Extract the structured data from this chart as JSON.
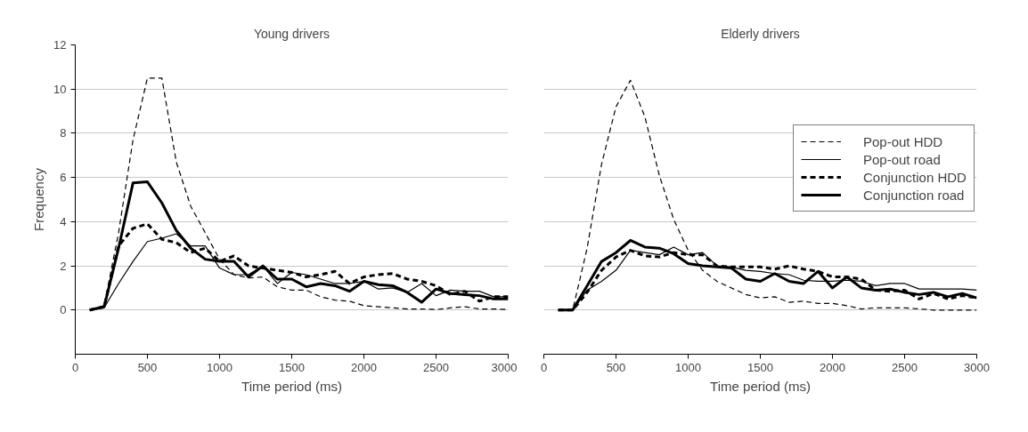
{
  "chart_data": [
    {
      "type": "line",
      "title": "Young drivers",
      "xlabel": "Time period (ms)",
      "ylabel": "Frequency",
      "xlim": [
        0,
        3000
      ],
      "xticks": [
        0,
        500,
        1000,
        1500,
        2000,
        2500,
        3000
      ],
      "ylim": [
        -2,
        12
      ],
      "yticks": [
        0,
        2,
        4,
        6,
        8,
        10,
        12
      ],
      "grid": "y",
      "legend": false,
      "x": [
        100,
        200,
        300,
        400,
        500,
        600,
        700,
        800,
        900,
        1000,
        1100,
        1200,
        1300,
        1400,
        1500,
        1600,
        1700,
        1800,
        1900,
        2000,
        2100,
        2200,
        2300,
        2400,
        2500,
        2600,
        2700,
        2800,
        2900,
        3000
      ],
      "series": [
        {
          "color": "#000000",
          "line_style": "dashed",
          "values": [
            0,
            0.2,
            3.5,
            7.7,
            10.5,
            10.5,
            6.7,
            4.7,
            3.5,
            2.3,
            1.6,
            1.45,
            1.5,
            1.05,
            0.9,
            0.9,
            0.6,
            0.45,
            0.4,
            0.2,
            0.15,
            0.1,
            0.05,
            0.05,
            0.02,
            0.1,
            0.15,
            0.05,
            0.05,
            0.02
          ]
        },
        {
          "color": "#000000",
          "line_style": "solid",
          "values": [
            0,
            0.1,
            1.2,
            2.2,
            3.1,
            3.25,
            3.45,
            2.9,
            2.9,
            1.9,
            1.6,
            1.6,
            2.0,
            1.2,
            1.7,
            1.6,
            1.4,
            1.2,
            1.2,
            1.3,
            0.95,
            1.0,
            0.8,
            1.2,
            0.65,
            0.9,
            0.85,
            0.85,
            0.6,
            0.6
          ]
        },
        {
          "color": "#000000",
          "line_style": "dashed",
          "values": [
            0,
            0.15,
            2.9,
            3.7,
            3.9,
            3.2,
            3.05,
            2.6,
            2.8,
            2.2,
            2.45,
            2.0,
            1.9,
            1.8,
            1.7,
            1.5,
            1.6,
            1.75,
            1.2,
            1.5,
            1.6,
            1.65,
            1.4,
            1.3,
            1.1,
            0.7,
            0.85,
            0.4,
            0.6,
            0.6
          ]
        },
        {
          "color": "#000000",
          "line_style": "solid",
          "values": [
            0,
            0.15,
            2.8,
            5.75,
            5.8,
            4.85,
            3.6,
            2.8,
            2.3,
            2.2,
            2.2,
            1.5,
            2.0,
            1.4,
            1.4,
            1.05,
            1.2,
            1.1,
            0.85,
            1.3,
            1.15,
            1.1,
            0.8,
            0.35,
            0.95,
            0.75,
            0.7,
            0.65,
            0.5,
            0.5
          ]
        }
      ]
    },
    {
      "type": "line",
      "title": "Elderly drivers",
      "xlabel": "Time period (ms)",
      "xlim": [
        0,
        3000
      ],
      "xticks": [
        0,
        500,
        1000,
        1500,
        2000,
        2500,
        3000
      ],
      "ylim": [
        -2,
        12
      ],
      "yticks": [
        0,
        2,
        4,
        6,
        8,
        10,
        12
      ],
      "grid": "y",
      "legend": "right",
      "tick_labels": "x",
      "x": [
        100,
        200,
        300,
        400,
        500,
        600,
        700,
        800,
        900,
        1000,
        1100,
        1200,
        1300,
        1400,
        1500,
        1600,
        1700,
        1800,
        1900,
        2000,
        2100,
        2200,
        2300,
        2400,
        2500,
        2600,
        2700,
        2800,
        2900,
        3000
      ],
      "series": [
        {
          "name": "Pop-out HDD",
          "color": "#000000",
          "line_style": "dashed",
          "values": [
            0,
            0,
            2.8,
            6.6,
            9.2,
            10.4,
            8.75,
            6.1,
            4.1,
            2.7,
            1.8,
            1.3,
            1.0,
            0.7,
            0.55,
            0.6,
            0.35,
            0.4,
            0.3,
            0.3,
            0.2,
            0.05,
            0.1,
            0.1,
            0.1,
            0.05,
            0,
            0,
            0,
            0
          ]
        },
        {
          "name": "Pop-out road",
          "color": "#000000",
          "line_style": "solid",
          "values": [
            0,
            0,
            0.9,
            1.3,
            1.8,
            2.7,
            2.6,
            2.5,
            2.85,
            2.5,
            2.6,
            2.0,
            1.95,
            1.8,
            1.75,
            1.65,
            1.6,
            1.35,
            1.3,
            1.3,
            1.35,
            1.3,
            1.1,
            1.2,
            1.2,
            0.95,
            0.95,
            0.95,
            0.95,
            0.9
          ]
        },
        {
          "name": "Conjunction HDD",
          "color": "#000000",
          "line_style": "dashed",
          "values": [
            0,
            0,
            0.8,
            1.8,
            2.4,
            2.7,
            2.45,
            2.4,
            2.6,
            2.5,
            2.5,
            2.0,
            1.95,
            1.95,
            1.95,
            1.85,
            2.0,
            1.85,
            1.75,
            1.5,
            1.5,
            1.4,
            0.9,
            0.85,
            0.9,
            0.5,
            0.75,
            0.5,
            0.65,
            0.55
          ]
        },
        {
          "name": "Conjunction road",
          "color": "#000000",
          "line_style": "solid",
          "values": [
            0,
            0,
            1.1,
            2.2,
            2.6,
            3.15,
            2.85,
            2.8,
            2.55,
            2.1,
            2.0,
            1.95,
            1.9,
            1.4,
            1.3,
            1.65,
            1.3,
            1.2,
            1.75,
            1.0,
            1.5,
            1.0,
            0.9,
            0.95,
            0.8,
            0.7,
            0.8,
            0.6,
            0.75,
            0.55
          ]
        }
      ]
    }
  ]
}
